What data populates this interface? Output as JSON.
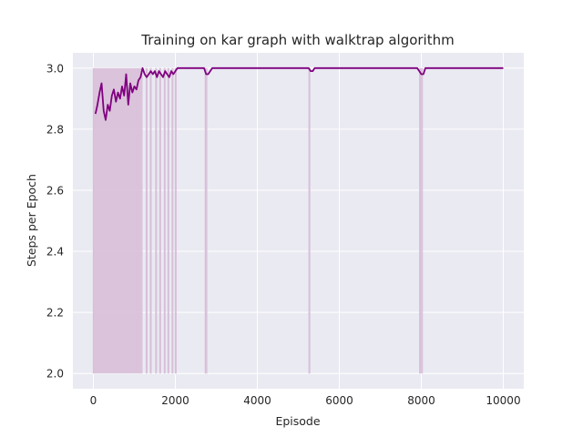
{
  "chart_data": {
    "type": "line",
    "title": "Training on kar graph with walktrap algorithm",
    "xlabel": "Episode",
    "ylabel": "Steps per Epoch",
    "xlim": [
      -500,
      10500
    ],
    "ylim": [
      1.95,
      3.05
    ],
    "x_ticks": [
      0,
      2000,
      4000,
      6000,
      8000,
      10000
    ],
    "y_ticks": [
      2.0,
      2.2,
      2.4,
      2.6,
      2.8,
      3.0
    ],
    "x_tick_labels": [
      "0",
      "2000",
      "4000",
      "6000",
      "8000",
      "10000"
    ],
    "y_tick_labels": [
      "2.0",
      "2.2",
      "2.4",
      "2.6",
      "2.8",
      "3.0"
    ],
    "grid": true,
    "legend": "none",
    "colors": {
      "background": "#eaeaf2",
      "grid": "#ffffff",
      "line": "#800080",
      "fill": "#d8bfd8"
    },
    "series": [
      {
        "role": "smoothed",
        "x": [
          50,
          100,
          150,
          200,
          250,
          300,
          350,
          400,
          450,
          500,
          550,
          600,
          650,
          700,
          750,
          800,
          850,
          900,
          950,
          1000,
          1050,
          1100,
          1150,
          1200,
          1250,
          1300,
          1350,
          1400,
          1450,
          1500,
          1550,
          1600,
          1650,
          1700,
          1750,
          1800,
          1850,
          1900,
          1950,
          2000,
          2050,
          2100,
          2700,
          2750,
          2800,
          2850,
          2900,
          5250,
          5300,
          5350,
          5400,
          7900,
          7950,
          8000,
          8050,
          8100,
          10000
        ],
        "values": [
          2.85,
          2.88,
          2.92,
          2.95,
          2.86,
          2.83,
          2.88,
          2.86,
          2.91,
          2.93,
          2.89,
          2.92,
          2.9,
          2.94,
          2.91,
          2.98,
          2.88,
          2.95,
          2.92,
          2.94,
          2.93,
          2.96,
          2.97,
          3.0,
          2.98,
          2.97,
          2.98,
          2.99,
          2.98,
          2.99,
          2.97,
          2.99,
          2.98,
          2.97,
          2.99,
          2.98,
          2.97,
          2.99,
          2.98,
          2.99,
          3.0,
          3.0,
          3.0,
          2.98,
          2.98,
          2.99,
          3.0,
          3.0,
          2.99,
          2.99,
          3.0,
          3.0,
          2.99,
          2.98,
          2.98,
          3.0,
          3.0
        ]
      },
      {
        "role": "raw-range",
        "x": [
          0,
          1200,
          1290,
          1320,
          1390,
          1420,
          1520,
          1550,
          1620,
          1640,
          1730,
          1760,
          1820,
          1840,
          1920,
          1950,
          2000,
          2020,
          2730,
          2780,
          5260,
          5290,
          7960,
          8040
        ],
        "values": [
          3.0,
          3.0,
          3.0,
          3.0,
          3.0,
          3.0,
          3.0,
          3.0,
          3.0,
          3.0,
          3.0,
          3.0,
          3.0,
          3.0,
          3.0,
          3.0,
          3.0,
          3.0,
          3.0,
          3.0,
          3.0,
          3.0,
          3.0,
          3.0
        ],
        "lower": [
          2.0,
          2.0,
          2.0,
          2.0,
          2.0,
          2.0,
          2.0,
          2.0,
          2.0,
          2.0,
          2.0,
          2.0,
          2.0,
          2.0,
          2.0,
          2.0,
          2.0,
          2.0,
          2.0,
          2.0,
          2.0,
          2.0,
          2.0,
          2.0
        ]
      }
    ]
  }
}
